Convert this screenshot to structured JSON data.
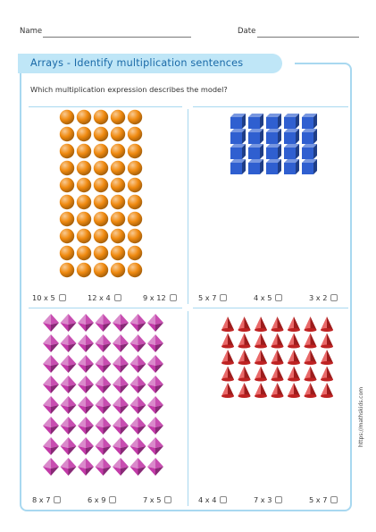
{
  "header": {
    "name_label": "Name",
    "date_label": "Date"
  },
  "title": "Arrays - Identify multiplication sentences",
  "question": "Which multiplication expression describes the model?",
  "website": "https://mathskids.com",
  "colors": {
    "frame": "#a8d8f0",
    "title_bg": "#bfe6f7",
    "title_text": "#1a6aa8"
  },
  "panels": [
    {
      "model": "orange-spheres",
      "rows": 10,
      "cols": 5,
      "color": "#f08a10",
      "options": [
        "10 x 5",
        "12 x 4",
        "9 x 12"
      ]
    },
    {
      "model": "blue-cubes",
      "rows": 4,
      "cols": 5,
      "color": "#2f5fd0",
      "options": [
        "5 x 7",
        "4 x 5",
        "3 x 2"
      ]
    },
    {
      "model": "pink-octahedrons",
      "rows": 8,
      "cols": 7,
      "color": "#c23aa8",
      "options": [
        "8 x 7",
        "6 x 9",
        "7 x 5"
      ]
    },
    {
      "model": "red-cones",
      "rows": 5,
      "cols": 7,
      "color": "#e02828",
      "options": [
        "4 x 4",
        "7 x 3",
        "5 x 7"
      ]
    }
  ]
}
